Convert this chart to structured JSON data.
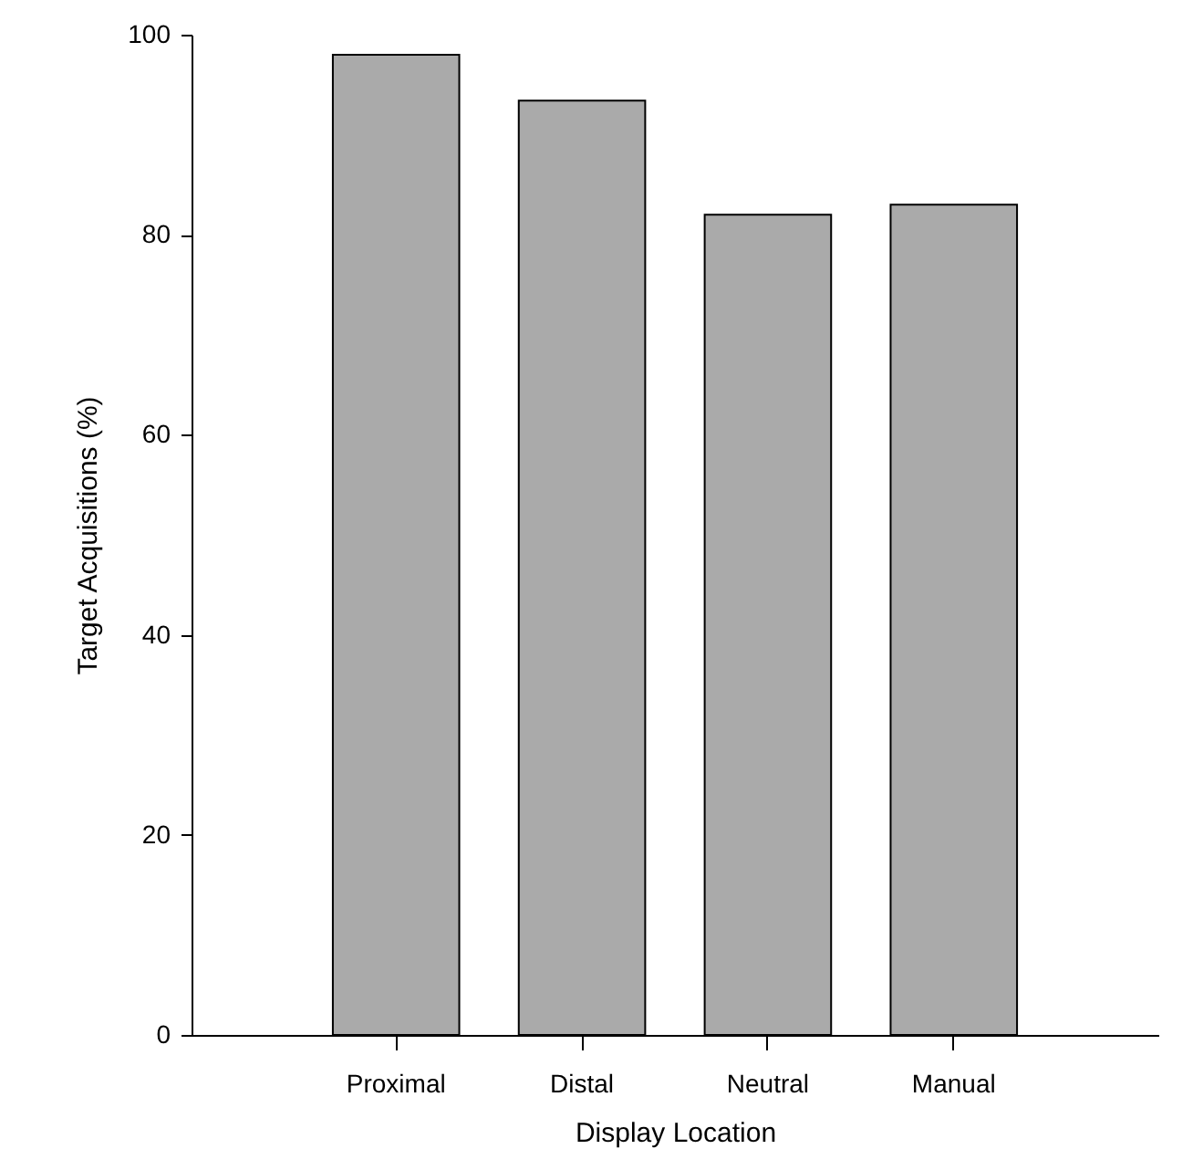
{
  "chart_data": {
    "type": "bar",
    "xlabel": "Display Location",
    "ylabel": "Target Acquisitions (%)",
    "categories": [
      "Proximal",
      "Distal",
      "Neutral",
      "Manual"
    ],
    "values": [
      98,
      93.4,
      82,
      83
    ],
    "color": "#aaaaaa",
    "ylim": [
      0,
      100
    ],
    "yticks": [
      0,
      20,
      40,
      60,
      80,
      100
    ],
    "grid": false
  }
}
